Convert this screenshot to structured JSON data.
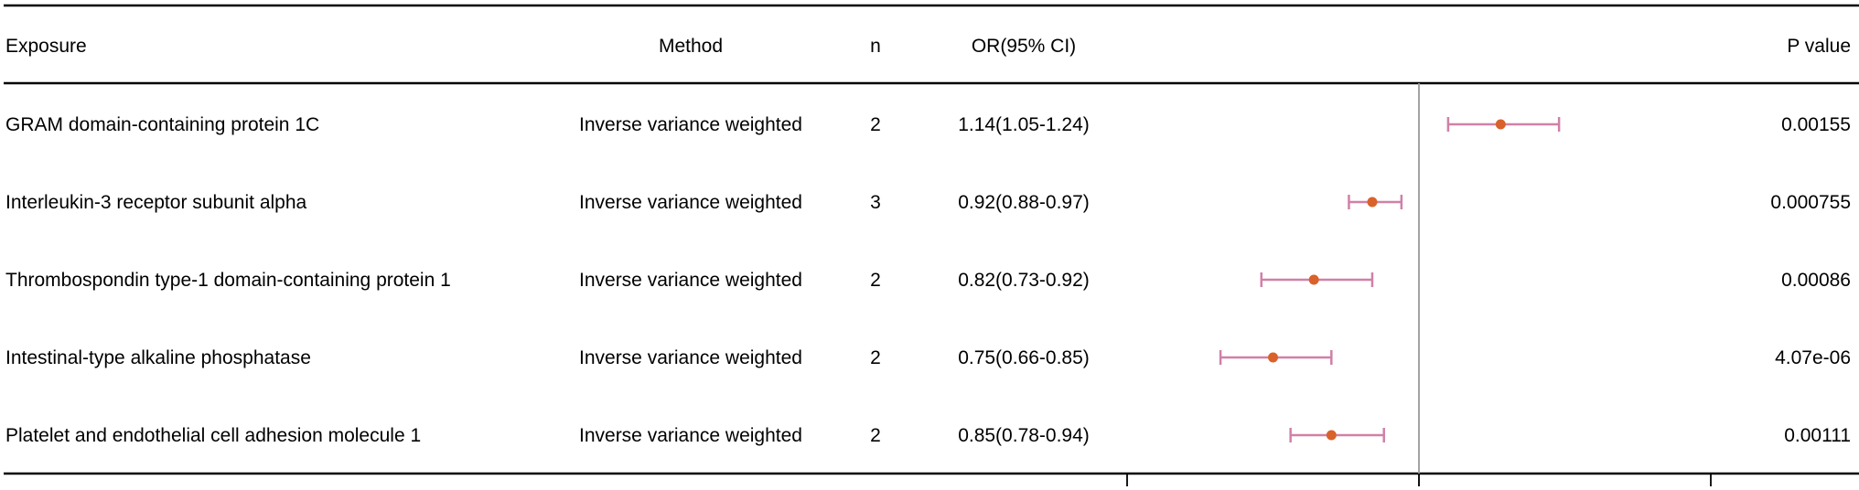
{
  "headers": {
    "exposure": "Exposure",
    "method": "Method",
    "n": "n",
    "or_ci": "OR(95% CI)",
    "p_value": "P value"
  },
  "rows": [
    {
      "exposure": "GRAM domain-containing protein 1C",
      "method": "Inverse variance weighted",
      "n": "2",
      "or_ci": "1.14(1.05-1.24)",
      "p_value": "0.00155"
    },
    {
      "exposure": "Interleukin-3 receptor subunit alpha",
      "method": "Inverse variance weighted",
      "n": "3",
      "or_ci": "0.92(0.88-0.97)",
      "p_value": "0.000755"
    },
    {
      "exposure": "Thrombospondin type-1 domain-containing protein 1",
      "method": "Inverse variance weighted",
      "n": "2",
      "or_ci": "0.82(0.73-0.92)",
      "p_value": "0.00086"
    },
    {
      "exposure": "Intestinal-type alkaline phosphatase",
      "method": "Inverse variance weighted",
      "n": "2",
      "or_ci": "0.75(0.66-0.85)",
      "p_value": "4.07e-06"
    },
    {
      "exposure": "Platelet and endothelial cell adhesion molecule 1",
      "method": "Inverse variance weighted",
      "n": "2",
      "or_ci": "0.85(0.78-0.94)",
      "p_value": "0.00111"
    }
  ],
  "chart_data": {
    "type": "forest",
    "reference_line": 1.0,
    "xlim": [
      0.5,
      1.5
    ],
    "x_ticks": [
      0.5,
      1.0,
      1.5
    ],
    "x_tick_labels_shown": false,
    "series": [
      {
        "or": 1.14,
        "lower": 1.05,
        "upper": 1.24
      },
      {
        "or": 0.92,
        "lower": 0.88,
        "upper": 0.97
      },
      {
        "or": 0.82,
        "lower": 0.73,
        "upper": 0.92
      },
      {
        "or": 0.75,
        "lower": 0.66,
        "upper": 0.85
      },
      {
        "or": 0.85,
        "lower": 0.78,
        "upper": 0.94
      }
    ],
    "colors": {
      "point": "#d9622b",
      "ci_line": "#d080a8",
      "ref_line": "#999999",
      "rule": "#000000"
    }
  }
}
